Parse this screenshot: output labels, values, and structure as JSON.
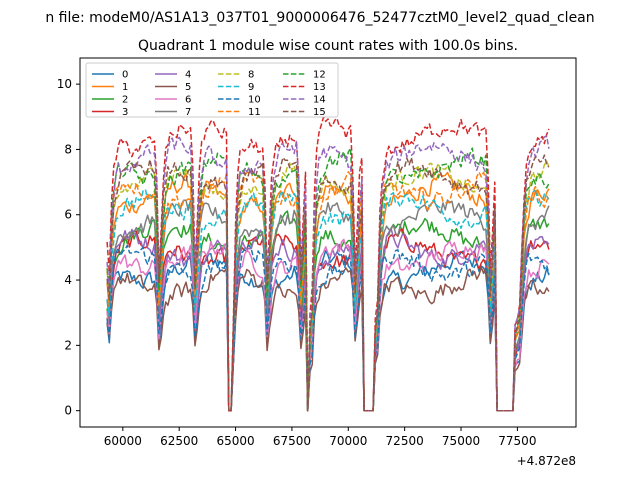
{
  "figure": {
    "suptitle": "n file: modeM0/AS1A13_037T01_9000006476_52477cztM0_level2_quad_clean"
  },
  "chart_data": {
    "type": "line",
    "title": "Quadrant 1 module wise count rates with 100.0s bins.",
    "xlabel": "",
    "ylabel": "",
    "x_offset_label": "+4.872e8",
    "xlim": [
      58100,
      80100
    ],
    "ylim": [
      -0.5,
      10.8
    ],
    "xticks": [
      60000,
      62500,
      65000,
      67500,
      70000,
      72500,
      75000,
      77500
    ],
    "xtick_labels": [
      "60000",
      "62500",
      "65000",
      "67500",
      "70000",
      "72500",
      "75000",
      "77500"
    ],
    "yticks": [
      0,
      2,
      4,
      6,
      8,
      10
    ],
    "ytick_labels": [
      "0",
      "2",
      "4",
      "6",
      "8",
      "10"
    ],
    "grid": false,
    "legend": {
      "placement": "top-left",
      "columns": 4
    },
    "bin_seconds": 100,
    "segments": [
      [
        59300,
        64600
      ],
      [
        64850,
        68100
      ],
      [
        68300,
        70600
      ],
      [
        71200,
        76500
      ],
      [
        77400,
        78900
      ]
    ],
    "gaps_zero": [
      [
        64600,
        64850
      ],
      [
        70600,
        71200
      ],
      [
        76500,
        77400
      ]
    ],
    "gap_dips": [
      61600,
      63200,
      66400,
      67900,
      70300,
      76300,
      77600
    ],
    "series": [
      {
        "name": "0",
        "color": "#1f77b4",
        "dash": "solid",
        "mean": 4.3
      },
      {
        "name": "1",
        "color": "#ff7f0e",
        "dash": "solid",
        "mean": 6.6
      },
      {
        "name": "2",
        "color": "#2ca02c",
        "dash": "solid",
        "mean": 5.4
      },
      {
        "name": "3",
        "color": "#d62728",
        "dash": "solid",
        "mean": 4.9
      },
      {
        "name": "4",
        "color": "#9467bd",
        "dash": "solid",
        "mean": 5.0
      },
      {
        "name": "5",
        "color": "#8c564b",
        "dash": "solid",
        "mean": 3.9
      },
      {
        "name": "6",
        "color": "#e377c2",
        "dash": "solid",
        "mean": 4.7
      },
      {
        "name": "7",
        "color": "#7f7f7f",
        "dash": "solid",
        "mean": 5.9
      },
      {
        "name": "8",
        "color": "#bcbd22",
        "dash": "dashed",
        "mean": 7.0
      },
      {
        "name": "9",
        "color": "#17becf",
        "dash": "dashed",
        "mean": 6.2
      },
      {
        "name": "10",
        "color": "#1f77b4",
        "dash": "dashed",
        "mean": 4.5
      },
      {
        "name": "11",
        "color": "#ff7f0e",
        "dash": "dashed",
        "mean": 6.8
      },
      {
        "name": "12",
        "color": "#2ca02c",
        "dash": "dashed",
        "mean": 7.4
      },
      {
        "name": "13",
        "color": "#d62728",
        "dash": "dashed",
        "mean": 8.4
      },
      {
        "name": "14",
        "color": "#9467bd",
        "dash": "dashed",
        "mean": 7.8
      },
      {
        "name": "15",
        "color": "#8c564b",
        "dash": "dashed",
        "mean": 7.2
      }
    ]
  }
}
